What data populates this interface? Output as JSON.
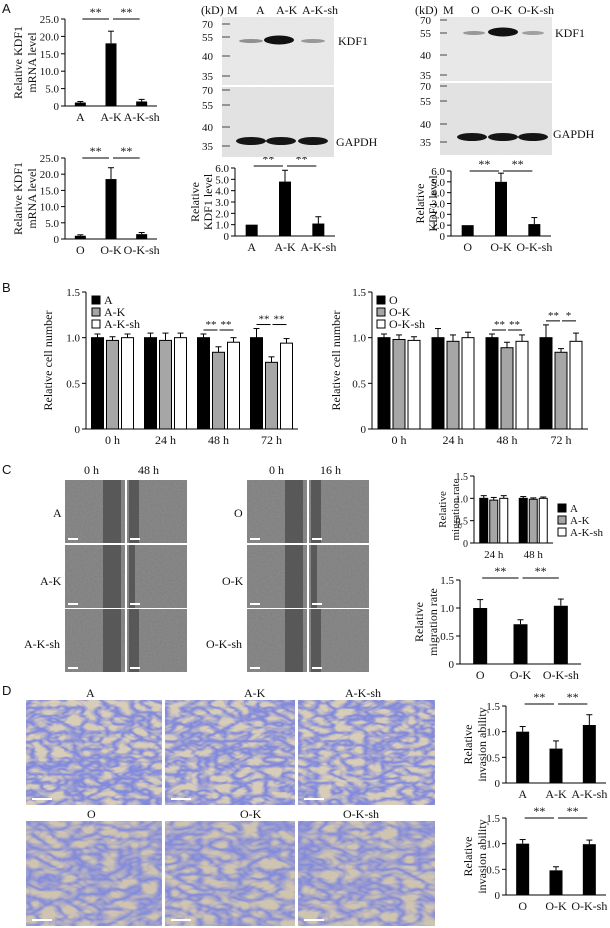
{
  "panel_labels": {
    "a": "A",
    "b": "B",
    "c": "C",
    "d": "D"
  },
  "stat": {
    "sig": "**",
    "sig1": "*"
  },
  "blot": {
    "kd_unit": "(kD)",
    "marker_lane": "M",
    "blot1_lanes": [
      "A",
      "A-K",
      "A-K-sh"
    ],
    "blot2_lanes": [
      "O",
      "O-K",
      "O-K-sh"
    ],
    "kdf1_label": "KDF1",
    "gapdh_label": "GAPDH",
    "top_ladder": [
      "70",
      "55",
      "40",
      "35"
    ],
    "bottom_ladder": [
      "70",
      "55",
      "40",
      "35"
    ]
  },
  "images": {
    "wound_time_a": [
      "0 h",
      "48 h"
    ],
    "wound_time_o": [
      "0 h",
      "16 h"
    ],
    "wound_rows_a": [
      "A",
      "A-K",
      "A-K-sh"
    ],
    "wound_rows_o": [
      "O",
      "O-K",
      "O-K-sh"
    ],
    "invasion_row1": [
      "A",
      "A-K",
      "A-K-sh"
    ],
    "invasion_row2": [
      "O",
      "O-K",
      "O-K-sh"
    ]
  },
  "chart_data": [
    {
      "type": "bar",
      "id": "a_mrna_a",
      "categories": [
        "A",
        "A-K",
        "A-K-sh"
      ],
      "values": [
        1.0,
        18.0,
        1.3
      ],
      "errors": [
        0.3,
        3.5,
        0.6
      ],
      "ylabel": "Relative KDF1 mRNA level",
      "ylim": [
        0,
        25
      ],
      "yticks": [
        "0",
        "5.0",
        "10.0",
        "15.0",
        "20.0",
        "25.0"
      ]
    },
    {
      "type": "bar",
      "id": "a_mrna_o",
      "categories": [
        "O",
        "O-K",
        "O-K-sh"
      ],
      "values": [
        1.0,
        18.5,
        1.5
      ],
      "errors": [
        0.3,
        3.5,
        0.5
      ],
      "ylabel": "Relative KDF1 mRNA level",
      "ylim": [
        0,
        25
      ],
      "yticks": [
        "0",
        "5.0",
        "10.0",
        "15.0",
        "20.0",
        "25.0"
      ]
    },
    {
      "type": "bar",
      "id": "a_protein_a",
      "categories": [
        "A",
        "A-K",
        "A-K-sh"
      ],
      "values": [
        1.0,
        4.8,
        1.1
      ],
      "errors": [
        0.0,
        1.0,
        0.6
      ],
      "ylabel": "Relative KDF1 level",
      "ylim": [
        0,
        6
      ],
      "yticks": [
        "0",
        "1.0",
        "2.0",
        "3.0",
        "4.0",
        "5.0",
        "6.0"
      ]
    },
    {
      "type": "bar",
      "id": "a_protein_o",
      "categories": [
        "O",
        "O-K",
        "O-K-sh"
      ],
      "values": [
        1.0,
        5.0,
        1.1
      ],
      "errors": [
        0.0,
        0.8,
        0.6
      ],
      "ylabel": "Relative KDF1 level",
      "ylim": [
        0,
        6
      ],
      "yticks": [
        "0",
        "1.0",
        "2.0",
        "3.0",
        "4.0",
        "5.0",
        "6.0"
      ]
    },
    {
      "type": "bar",
      "id": "b_a",
      "categories": [
        "0 h",
        "24 h",
        "48 h",
        "72 h"
      ],
      "series": [
        {
          "name": "A",
          "values": [
            1.0,
            1.0,
            1.0,
            1.0
          ],
          "errors": [
            0.04,
            0.05,
            0.04,
            0.1
          ]
        },
        {
          "name": "A-K",
          "values": [
            0.97,
            0.97,
            0.84,
            0.73
          ],
          "errors": [
            0.04,
            0.08,
            0.06,
            0.06
          ]
        },
        {
          "name": "A-K-sh",
          "values": [
            1.0,
            1.0,
            0.95,
            0.94
          ],
          "errors": [
            0.04,
            0.05,
            0.05,
            0.05
          ]
        }
      ],
      "ylabel": "Relative cell number",
      "ylim": [
        0,
        1.5
      ],
      "yticks": [
        "0",
        "0.5",
        "1.0",
        "1.5"
      ],
      "legend": "top-left"
    },
    {
      "type": "bar",
      "id": "b_o",
      "categories": [
        "0 h",
        "24 h",
        "48 h",
        "72 h"
      ],
      "series": [
        {
          "name": "O",
          "values": [
            1.0,
            1.0,
            1.0,
            1.0
          ],
          "errors": [
            0.04,
            0.1,
            0.04,
            0.14
          ]
        },
        {
          "name": "O-K",
          "values": [
            0.98,
            0.96,
            0.89,
            0.84
          ],
          "errors": [
            0.05,
            0.07,
            0.06,
            0.04
          ]
        },
        {
          "name": "O-K-sh",
          "values": [
            0.97,
            1.0,
            0.96,
            0.96
          ],
          "errors": [
            0.04,
            0.06,
            0.07,
            0.09
          ]
        }
      ],
      "ylabel": "Relative cell number",
      "ylim": [
        0,
        1.5
      ],
      "yticks": [
        "0",
        "0.5",
        "1.0",
        "1.5"
      ],
      "legend": "top-left"
    },
    {
      "type": "bar",
      "id": "c_a",
      "categories": [
        "24 h",
        "48 h"
      ],
      "series": [
        {
          "name": "A",
          "values": [
            1.0,
            1.0
          ],
          "errors": [
            0.06,
            0.04
          ]
        },
        {
          "name": "A-K",
          "values": [
            0.96,
            0.98
          ],
          "errors": [
            0.06,
            0.03
          ]
        },
        {
          "name": "A-K-sh",
          "values": [
            1.0,
            1.0
          ],
          "errors": [
            0.06,
            0.03
          ]
        }
      ],
      "ylabel": "Relative migration rate",
      "ylim": [
        0,
        1.5
      ],
      "yticks": [
        "0",
        "0.5",
        "1.0",
        "1.5"
      ],
      "legend": "right"
    },
    {
      "type": "bar",
      "id": "c_o",
      "categories": [
        "O",
        "O-K",
        "O-K-sh"
      ],
      "values": [
        1.0,
        0.71,
        1.04
      ],
      "errors": [
        0.15,
        0.08,
        0.12
      ],
      "ylabel": "Relative migration rate",
      "ylim": [
        0,
        1.5
      ],
      "yticks": [
        "0",
        "0.5",
        "1.0",
        "1.5"
      ]
    },
    {
      "type": "bar",
      "id": "d_a",
      "categories": [
        "A",
        "A-K",
        "A-K-sh"
      ],
      "values": [
        1.0,
        0.67,
        1.13
      ],
      "errors": [
        0.1,
        0.15,
        0.2
      ],
      "ylabel": "Relative invasion ability",
      "ylim": [
        0,
        1.5
      ],
      "yticks": [
        "0",
        "0.5",
        "1.0",
        "1.5"
      ]
    },
    {
      "type": "bar",
      "id": "d_o",
      "categories": [
        "O",
        "O-K",
        "O-K-sh"
      ],
      "values": [
        1.0,
        0.48,
        0.99
      ],
      "errors": [
        0.08,
        0.07,
        0.08
      ],
      "ylabel": "Relative invasion ability",
      "ylim": [
        0,
        1.5
      ],
      "yticks": [
        "0",
        "0.5",
        "1.0",
        "1.5"
      ]
    }
  ]
}
